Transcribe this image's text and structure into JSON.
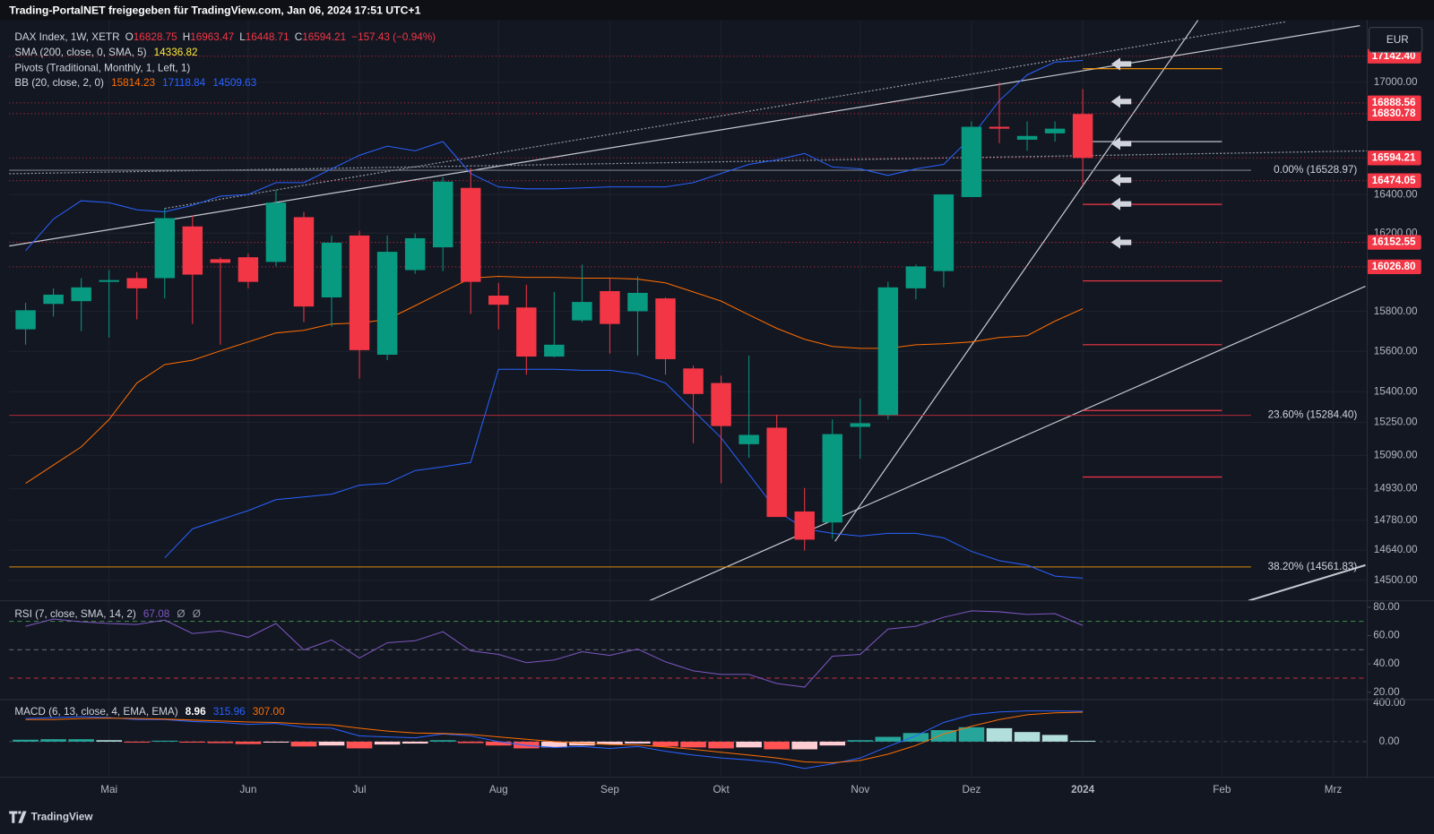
{
  "header": {
    "title": "Trading-PortalNET freigegeben für TradingView.com, Jan 06, 2024 17:51 UTC+1"
  },
  "footer": {
    "brand": "TradingView"
  },
  "chart_data": {
    "type": "candlestick",
    "currency": "EUR",
    "legend": {
      "symbol": "DAX Index, 1W, XETR",
      "ohlc_letters": [
        "O",
        "H",
        "L",
        "C"
      ],
      "change": "−157.43 (−0.94%)",
      "sma": "SMA (200, close, 0, SMA, 5)",
      "sma_value": 14336.82,
      "pivots": "Pivots (Traditional, Monthly, 1, Left, 1)",
      "bb": "BB (20, close, 2, 0)"
    },
    "categories": [
      null,
      null,
      null,
      "Mai",
      null,
      null,
      null,
      null,
      "Jun",
      null,
      null,
      null,
      "Jul",
      null,
      null,
      null,
      null,
      "Aug",
      null,
      null,
      null,
      "Sep",
      null,
      null,
      null,
      "Okt",
      null,
      null,
      null,
      null,
      "Nov",
      null,
      null,
      null,
      "Dez",
      null,
      null,
      null,
      "2024",
      null,
      null,
      null,
      null,
      "Feb",
      null,
      null,
      null,
      "Mrz"
    ],
    "open": [
      15710,
      15838,
      15852,
      15950,
      15969,
      15969,
      16235,
      16066,
      16076,
      16052,
      16283,
      15871,
      16188,
      15583,
      16010,
      16127,
      16436,
      15880,
      15820,
      15574,
      15755,
      15903,
      15801,
      15866,
      15515,
      15443,
      15144,
      15224,
      14822,
      14770,
      15228,
      15286,
      15917,
      16005,
      16388,
      16760,
      16691,
      16725,
      16828.75,
      null,
      null,
      null,
      null,
      null,
      null,
      null,
      null,
      null
    ],
    "high": [
      15843,
      15917,
      15969,
      16010,
      16000,
      16330,
      16292,
      16076,
      16095,
      16426,
      16311,
      16188,
      16212,
      16188,
      16198,
      16493,
      16541,
      15945,
      15936,
      15899,
      16038,
      15969,
      15978,
      15871,
      15529,
      15479,
      15579,
      15286,
      14934,
      15264,
      15366,
      15950,
      16038,
      16402,
      16789,
      17000,
      16789,
      16789,
      16963.47,
      null,
      null,
      null,
      null,
      null,
      null,
      null,
      null,
      null
    ],
    "low": [
      15633,
      15774,
      15701,
      15669,
      15760,
      15866,
      15737,
      15633,
      15917,
      16029,
      15746,
      15724,
      15465,
      15556,
      15991,
      16005,
      15787,
      15710,
      15484,
      15570,
      15746,
      15588,
      15579,
      15484,
      15149,
      14956,
      15078,
      14796,
      14638,
      14693,
      15074,
      15264,
      15861,
      15922,
      16388,
      16672,
      16632,
      16681,
      16448.71,
      null,
      null,
      null,
      null,
      null,
      null,
      null,
      null,
      null
    ],
    "close": [
      15806,
      15885,
      15922,
      15959,
      15917,
      16278,
      15987,
      16047,
      15950,
      16359,
      15825,
      16151,
      15606,
      16104,
      16174,
      16469,
      15950,
      15834,
      15574,
      15633,
      15848,
      15737,
      15894,
      15561,
      15389,
      15232,
      15189,
      14796,
      14689,
      15193,
      15246,
      15922,
      16029,
      16402,
      16760,
      16750,
      16711,
      16750,
      16594.21,
      null,
      null,
      null,
      null,
      null,
      null,
      null,
      null,
      null
    ],
    "up_color": "#089981",
    "down_color": "#f23645",
    "overlays": [
      {
        "color": "#2962ff",
        "values": [
          16110,
          16273,
          16369,
          16359,
          16321,
          16311,
          16345,
          16393,
          16402,
          16464,
          16464,
          16536,
          16608,
          16657,
          16632,
          16681,
          16512,
          16441,
          16431,
          16431,
          16436,
          16441,
          16441,
          16441,
          16464,
          16512,
          16560,
          16584,
          16618,
          16546,
          16536,
          16502,
          16536,
          16560,
          16706,
          16901,
          17040,
          17110,
          17118.84,
          null,
          null,
          null,
          null,
          null,
          null,
          null,
          null,
          null
        ]
      },
      {
        "color": "#ff6d00",
        "values": [
          14956,
          15043,
          15131,
          15264,
          15443,
          15534,
          15556,
          15602,
          15647,
          15692,
          15705,
          15737,
          15742,
          15760,
          15829,
          15899,
          15969,
          15978,
          15973,
          15973,
          15969,
          15969,
          15964,
          15945,
          15899,
          15852,
          15783,
          15715,
          15660,
          15624,
          15615,
          15615,
          15633,
          15638,
          15647,
          15669,
          15678,
          15751,
          15814.23,
          null,
          null,
          null,
          null,
          null,
          null,
          null,
          null,
          null
        ]
      },
      {
        "color": "#2962ff",
        "values": [
          null,
          null,
          null,
          null,
          null,
          14604,
          14740,
          14783,
          14826,
          14878,
          14891,
          14904,
          14947,
          14956,
          15017,
          15035,
          15056,
          15511,
          15511,
          15511,
          15506,
          15506,
          15488,
          15443,
          15308,
          15175,
          15000,
          14826,
          14740,
          14719,
          14706,
          14719,
          14719,
          14698,
          14634,
          14591,
          14570,
          14519,
          14509.63,
          null,
          null,
          null,
          null,
          null,
          null,
          null,
          null,
          null
        ]
      }
    ],
    "log_scale": true,
    "grid": true,
    "ylim": [
      14405,
      17341
    ],
    "yticks": [
      {
        "value": 17000,
        "label": "17000.00"
      },
      {
        "value": 16400,
        "label": "16400.00"
      },
      {
        "value": 16200,
        "label": "16200.00"
      },
      {
        "value": 15800,
        "label": "15800.00"
      },
      {
        "value": 15600,
        "label": "15600.00"
      },
      {
        "value": 15400,
        "label": "15400.00"
      },
      {
        "value": 15250,
        "label": "15250.00"
      },
      {
        "value": 15090,
        "label": "15090.00"
      },
      {
        "value": 14930,
        "label": "14930.00"
      },
      {
        "value": 14780,
        "label": "14780.00"
      },
      {
        "value": 14640,
        "label": "14640.00"
      },
      {
        "value": 14500,
        "label": "14500.00"
      }
    ],
    "price_labels": [
      {
        "value": 17142.4,
        "label": "17142.40",
        "color": "#f23645"
      },
      {
        "value": 16888.56,
        "label": "16888.56",
        "color": "#f23645"
      },
      {
        "value": 16830.78,
        "label": "16830.78",
        "color": "#f23645"
      },
      {
        "value": 16594.21,
        "label": "16594.21",
        "color": "#f23645"
      },
      {
        "value": 16474.05,
        "label": "16474.05",
        "color": "#f23645"
      },
      {
        "value": 16152.55,
        "label": "16152.55",
        "color": "#f23645"
      },
      {
        "value": 16026.8,
        "label": "16026.80",
        "color": "#f23645"
      }
    ],
    "pivot_lines": [
      {
        "value": 17074,
        "color": "#ff9800"
      },
      {
        "value": 16681,
        "color": "#d1d4dc"
      },
      {
        "value": 16350,
        "color": "#f23645"
      },
      {
        "value": 15955,
        "color": "#f23645"
      },
      {
        "value": 15633,
        "color": "#f23645"
      },
      {
        "value": 15308,
        "color": "#f23645"
      },
      {
        "value": 14986,
        "color": "#f23645"
      }
    ],
    "fib": [
      {
        "value": 16528.97,
        "label": "0.00% (16528.97)",
        "color": "#787b86"
      },
      {
        "value": 15284.4,
        "label": "23.60% (15284.40)",
        "color": "#b22833"
      },
      {
        "value": 14561.83,
        "label": "38.20% (14561.83)",
        "color": "#d98b0f"
      }
    ],
    "rsi": {
      "title": "RSI (7, close, SMA, 14, 2)",
      "extra": [
        "Ø",
        "Ø"
      ],
      "color": "#7e57c2",
      "values": [
        66.5,
        71.7,
        69.7,
        68.5,
        67.8,
        71.0,
        61.4,
        63.3,
        58.8,
        68.5,
        49.9,
        56.9,
        44.1,
        55.0,
        56.3,
        62.7,
        49.2,
        46.7,
        40.9,
        42.8,
        48.6,
        46.0,
        50.5,
        41.5,
        35.1,
        32.6,
        32.6,
        26.2,
        23.6,
        45.4,
        46.7,
        64.6,
        66.5,
        72.9,
        77.4,
        76.8,
        74.9,
        75.5,
        67.08,
        null,
        null,
        null,
        null,
        null,
        null,
        null,
        null,
        null
      ],
      "ylim": [
        14.84,
        84.52
      ],
      "yticks": [
        {
          "value": 80,
          "label": "80.00"
        },
        {
          "value": 60,
          "label": "60.00"
        },
        {
          "value": 40,
          "label": "40.00"
        },
        {
          "value": 20,
          "label": "20.00"
        }
      ],
      "levels": [
        {
          "value": 70,
          "color": "#4caf50"
        },
        {
          "value": 50,
          "color": "#787b86"
        },
        {
          "value": 30,
          "color": "#f23645"
        }
      ]
    },
    "macd": {
      "title": "MACD (6, 13, close, 4, EMA, EMA)",
      "signal_last_label": "307.00",
      "macd_color": "#2962ff",
      "signal_color": "#ff6d00",
      "hist_colors": [
        "#26a69a",
        "#b2dfdb",
        "#ff5252",
        "#ffcdd2"
      ],
      "histogram": [
        20,
        25,
        25,
        15,
        -5,
        10,
        -10,
        -15,
        -25,
        -10,
        -50,
        -40,
        -70,
        -30,
        -20,
        15,
        -15,
        -40,
        -70,
        -60,
        -40,
        -30,
        -20,
        -50,
        -60,
        -70,
        -60,
        -80,
        -80,
        -40,
        15,
        50,
        90,
        120,
        150,
        140,
        100,
        70,
        8.96,
        null,
        null,
        null,
        null,
        null,
        null,
        null,
        null,
        null
      ],
      "macd": [
        240,
        250,
        260,
        250,
        230,
        230,
        210,
        200,
        180,
        190,
        150,
        140,
        60,
        50,
        40,
        80,
        60,
        0,
        -40,
        -60,
        -50,
        -70,
        -50,
        -100,
        -140,
        -170,
        -190,
        -220,
        -280,
        -230,
        -170,
        -50,
        60,
        200,
        280,
        310,
        320,
        320,
        315.96,
        null,
        null,
        null,
        null,
        null,
        null,
        null,
        null,
        null
      ],
      "signal": [
        230,
        230,
        240,
        245,
        240,
        235,
        225,
        215,
        205,
        200,
        185,
        175,
        140,
        110,
        90,
        85,
        75,
        50,
        25,
        0,
        -15,
        -30,
        -35,
        -55,
        -80,
        -110,
        -140,
        -170,
        -210,
        -220,
        -195,
        -130,
        -40,
        80,
        160,
        230,
        280,
        300,
        307,
        null,
        null,
        null,
        null,
        null,
        null,
        null,
        null,
        null
      ],
      "ylim": [
        -371.4,
        438.1
      ],
      "yticks": [
        {
          "value": 400,
          "label": "400.00"
        },
        {
          "value": 0,
          "label": "0.00"
        }
      ]
    }
  }
}
